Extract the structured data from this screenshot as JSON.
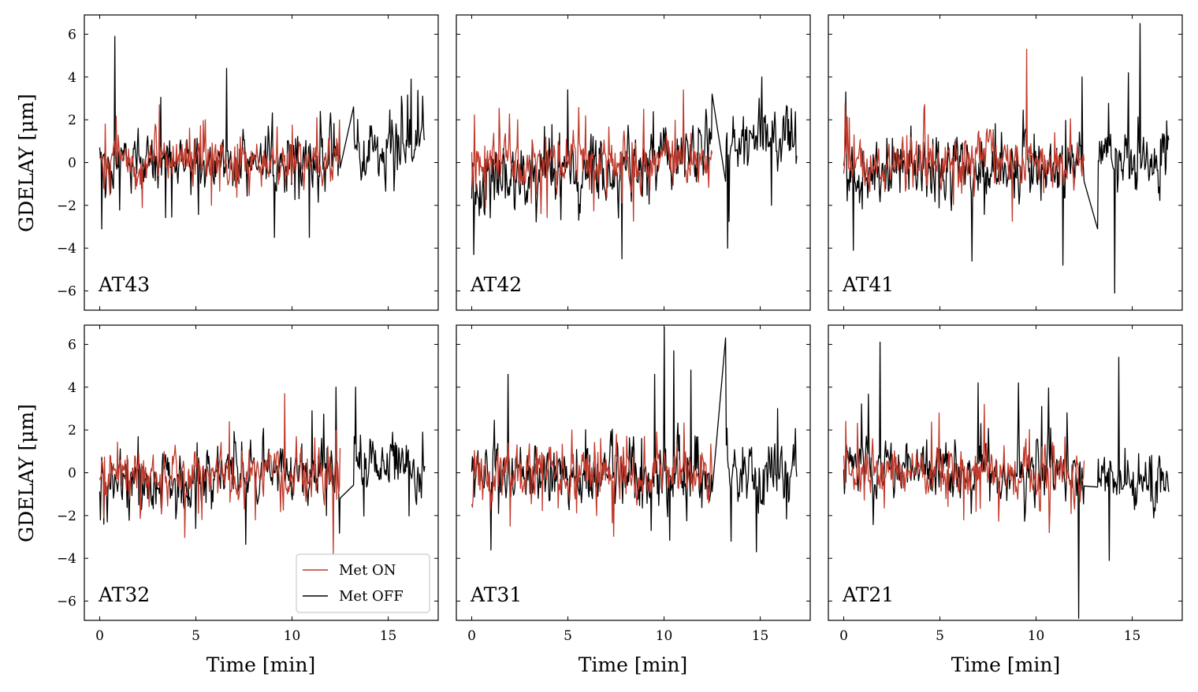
{
  "figure": {
    "ylabel": "GDELAY [μm]",
    "xlabel": "Time [min]"
  },
  "chart_data": {
    "type": "line",
    "layout": "2x3 grid, shared x and y axes",
    "xlim": [
      -0.8,
      17.6
    ],
    "ylim": [
      -6.9,
      6.9
    ],
    "xticks": [
      0,
      5,
      10,
      15
    ],
    "yticks": [
      -6,
      -4,
      -2,
      0,
      2,
      4,
      6
    ],
    "xtick_labels": [
      "0",
      "5",
      "10",
      "15"
    ],
    "ytick_labels": [
      "−6",
      "−4",
      "−2",
      "0",
      "2",
      "4",
      "6"
    ],
    "legend": {
      "location": "lower-right of AT32 panel",
      "entries": [
        {
          "name": "Met ON",
          "color": "#c0392b"
        },
        {
          "name": "Met OFF",
          "color": "#000000"
        }
      ]
    },
    "series_styles": {
      "Met ON": {
        "color": "#c0392b",
        "segments_min": [
          [
            0,
            4.6
          ],
          [
            4.6,
            8.2
          ],
          [
            8.3,
            12.5
          ]
        ]
      },
      "Met OFF": {
        "color": "#000000",
        "segments_min": [
          [
            0,
            4.6
          ],
          [
            4.6,
            8.2
          ],
          [
            8.3,
            12.5
          ],
          [
            13.2,
            16.9
          ]
        ]
      }
    },
    "panels": [
      {
        "label": "AT43",
        "seed": 43,
        "on_noise": 0.55,
        "off_noise": 0.7,
        "off_trend": [
          0.0,
          -0.3,
          0.8
        ],
        "spikes_off": [
          [
            0.8,
            5.9
          ],
          [
            0.1,
            -3.1
          ],
          [
            6.6,
            4.4
          ],
          [
            9.1,
            -3.5
          ],
          [
            10.9,
            -3.5
          ],
          [
            16.2,
            3.9
          ],
          [
            12.9,
            2.6
          ],
          [
            15.7,
            3.1
          ]
        ],
        "spikes_on": [
          [
            3.1,
            2.7
          ],
          [
            0.3,
            1.8
          ],
          [
            5.8,
            -2.0
          ],
          [
            11.3,
            2.1
          ]
        ]
      },
      {
        "label": "AT42",
        "seed": 42,
        "on_noise": 0.6,
        "off_noise": 0.75,
        "off_trend": [
          -1.0,
          -0.2,
          1.4
        ],
        "spikes_off": [
          [
            0.1,
            -4.3
          ],
          [
            5.0,
            3.4
          ],
          [
            7.8,
            -4.5
          ],
          [
            13.3,
            -4.0
          ],
          [
            15.1,
            4.0
          ],
          [
            12.7,
            3.2
          ],
          [
            15.6,
            -2.0
          ]
        ],
        "spikes_on": [
          [
            11.0,
            3.4
          ],
          [
            7.8,
            -1.9
          ],
          [
            2.4,
            2.0
          ]
        ]
      },
      {
        "label": "AT41",
        "seed": 41,
        "on_noise": 0.6,
        "off_noise": 0.75,
        "off_trend": [
          -0.6,
          -0.2,
          0.2
        ],
        "spikes_off": [
          [
            0.1,
            3.3
          ],
          [
            0.5,
            -4.1
          ],
          [
            14.1,
            -6.1
          ],
          [
            15.4,
            6.5
          ],
          [
            13.1,
            -3.1
          ],
          [
            11.4,
            -4.8
          ],
          [
            12.4,
            4.0
          ],
          [
            14.8,
            4.2
          ]
        ],
        "spikes_on": [
          [
            9.5,
            5.3
          ],
          [
            4.4,
            1.3
          ]
        ]
      },
      {
        "label": "AT32",
        "seed": 32,
        "on_noise": 0.6,
        "off_noise": 0.7,
        "off_trend": [
          -0.8,
          -0.1,
          0.7
        ],
        "spikes_off": [
          [
            0.4,
            -2.3
          ],
          [
            5.0,
            -2.6
          ],
          [
            13.3,
            4.0
          ],
          [
            12.3,
            4.0
          ],
          [
            16.8,
            1.9
          ],
          [
            11.8,
            -2.0
          ]
        ],
        "spikes_on": [
          [
            9.6,
            3.7
          ],
          [
            0.2,
            -2.1
          ],
          [
            8.1,
            -2.2
          ]
        ]
      },
      {
        "label": "AT31",
        "seed": 31,
        "on_noise": 0.6,
        "off_noise": 0.75,
        "off_trend": [
          -0.3,
          -0.1,
          -0.1
        ],
        "spikes_off": [
          [
            1.9,
            4.6
          ],
          [
            10.0,
            6.8
          ],
          [
            10.5,
            5.7
          ],
          [
            11.4,
            4.8
          ],
          [
            9.5,
            4.6
          ],
          [
            13.2,
            6.3
          ],
          [
            14.8,
            -3.7
          ],
          [
            13.5,
            -3.2
          ],
          [
            15.9,
            3.0
          ]
        ],
        "spikes_on": [
          [
            2.0,
            -2.5
          ],
          [
            6.5,
            -2.0
          ]
        ]
      },
      {
        "label": "AT21",
        "seed": 21,
        "on_noise": 0.55,
        "off_noise": 0.65,
        "off_trend": [
          0.4,
          0.0,
          -0.6
        ],
        "spikes_off": [
          [
            1.9,
            6.1
          ],
          [
            7.0,
            4.2
          ],
          [
            12.2,
            -6.8
          ],
          [
            14.3,
            5.4
          ],
          [
            13.8,
            -4.1
          ],
          [
            10.3,
            3.1
          ],
          [
            9.1,
            4.2
          ],
          [
            11.6,
            2.8
          ]
        ],
        "spikes_on": [
          [
            10.7,
            -2.8
          ],
          [
            12.0,
            -1.7
          ]
        ]
      }
    ]
  }
}
